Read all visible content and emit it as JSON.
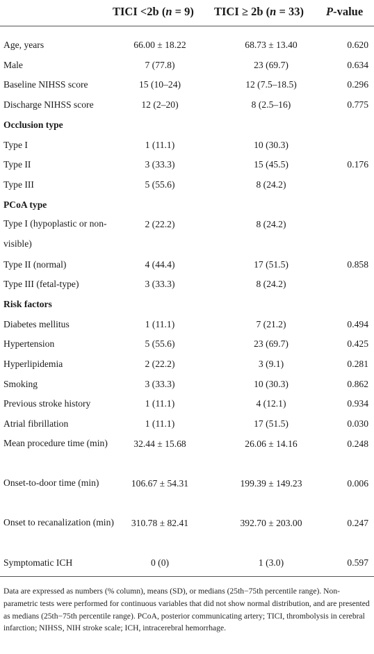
{
  "header": {
    "col1_pre": "TICI <2b (",
    "col1_n": "n",
    "col1_post": " = 9)",
    "col2_pre": "TICI ≥ 2b (",
    "col2_n": "n",
    "col2_post": " = 33)",
    "col3_p": "P",
    "col3_post": "-value"
  },
  "rows": [
    {
      "label": "Age, years",
      "a": "66.00 ± 18.22",
      "b": "68.73 ± 13.40",
      "p": "0.620"
    },
    {
      "label": "Male",
      "a": "7 (77.8)",
      "b": "23 (69.7)",
      "p": "0.634"
    },
    {
      "label": "Baseline NIHSS score",
      "a": "15 (10–24)",
      "b": "12 (7.5–18.5)",
      "p": "0.296"
    },
    {
      "label": "Discharge NIHSS score",
      "a": "12 (2–20)",
      "b": "8 (2.5–16)",
      "p": "0.775"
    },
    {
      "label": "Occlusion type",
      "section": true
    },
    {
      "label": "Type I",
      "a": "1 (11.1)",
      "b": "10 (30.3)",
      "p": ""
    },
    {
      "label": "Type II",
      "a": "3 (33.3)",
      "b": "15 (45.5)",
      "p": "0.176"
    },
    {
      "label": "Type III",
      "a": "5 (55.6)",
      "b": "8 (24.2)",
      "p": ""
    },
    {
      "label": "PCoA type",
      "section": true
    },
    {
      "label": "Type I (hypoplastic or non-visible)",
      "a": "2 (22.2)",
      "b": "8 (24.2)",
      "p": "",
      "tall": true
    },
    {
      "label": "Type II (normal)",
      "a": "4 (44.4)",
      "b": "17 (51.5)",
      "p": "0.858"
    },
    {
      "label": "Type III (fetal-type)",
      "a": "3 (33.3)",
      "b": "8 (24.2)",
      "p": ""
    },
    {
      "label": "Risk factors",
      "section": true
    },
    {
      "label": "Diabetes mellitus",
      "a": "1 (11.1)",
      "b": "7 (21.2)",
      "p": "0.494"
    },
    {
      "label": "Hypertension",
      "a": "5 (55.6)",
      "b": "23 (69.7)",
      "p": "0.425"
    },
    {
      "label": "Hyperlipidemia",
      "a": "2 (22.2)",
      "b": "3 (9.1)",
      "p": "0.281"
    },
    {
      "label": "Smoking",
      "a": "3 (33.3)",
      "b": "10 (30.3)",
      "p": "0.862"
    },
    {
      "label": "Previous stroke history",
      "a": "1 (11.1)",
      "b": "4 (12.1)",
      "p": "0.934"
    },
    {
      "label": "Atrial fibrillation",
      "a": "1 (11.1)",
      "b": "17 (51.5)",
      "p": "0.030"
    },
    {
      "label": "Mean procedure time (min)",
      "a": "32.44 ± 15.68",
      "b": "26.06 ± 14.16",
      "p": "0.248",
      "tall": true
    },
    {
      "label": "Onset-to-door time (min)",
      "a": "106.67 ± 54.31",
      "b": "199.39 ± 149.23",
      "p": "0.006",
      "tall": true
    },
    {
      "label": "Onset to recanalization (min)",
      "a": "310.78 ± 82.41",
      "b": "392.70 ± 203.00",
      "p": "0.247",
      "tall": true
    },
    {
      "label": "Symptomatic ICH",
      "a": "0 (0)",
      "b": "1 (3.0)",
      "p": "0.597"
    }
  ],
  "footnote": "Data are expressed as numbers (% column), means (SD), or medians (25th−75th percentile range). Non-parametric tests were performed for continuous variables that did not show normal distribution, and are presented as medians (25th−75th percentile range). PCoA, posterior communicating artery; TICI, thrombolysis in cerebral infarction; NIHSS, NIH stroke scale; ICH, intracerebral hemorrhage."
}
